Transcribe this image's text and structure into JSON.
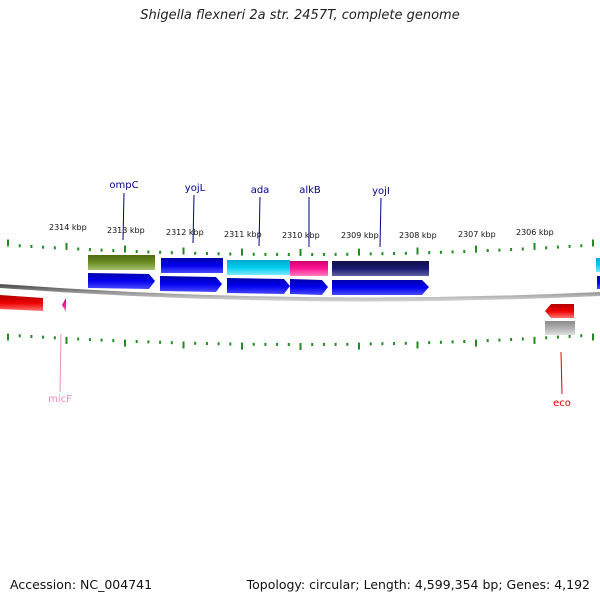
{
  "title": "Shigella flexneri 2a str. 2457T, complete genome",
  "footer": {
    "accession": "Accession: NC_004741",
    "topology": "Topology: circular; Length: 4,599,354 bp; Genes: 4,192"
  },
  "ticks_kbp": [
    "2314 kbp",
    "2313 kbp",
    "2312 kbp",
    "2311 kbp",
    "2310 kbp",
    "2309 kbp",
    "2308 kbp",
    "2307 kbp",
    "2306 kbp"
  ],
  "genes_top": [
    {
      "label": "ompC",
      "color": "#00008b"
    },
    {
      "label": "yojL",
      "color": "#00008b"
    },
    {
      "label": "ada",
      "color": "#00008b"
    },
    {
      "label": "alkB",
      "color": "#00008b"
    },
    {
      "label": "yojI",
      "color": "#00008b"
    }
  ],
  "genes_bottom": [
    {
      "label": "micF",
      "color": "#f08cc0"
    },
    {
      "label": "eco",
      "color": "#e00000"
    }
  ],
  "colors": {
    "backbone": "#808080",
    "tick": "#228b22",
    "olive": "#6b8e23",
    "blue": "#0000ee",
    "cyan": "#00ccee",
    "magenta": "#ff1493",
    "navy": "#191970",
    "red": "#ee0000",
    "gray": "#aaaaaa",
    "pink": "#f08cc0"
  }
}
